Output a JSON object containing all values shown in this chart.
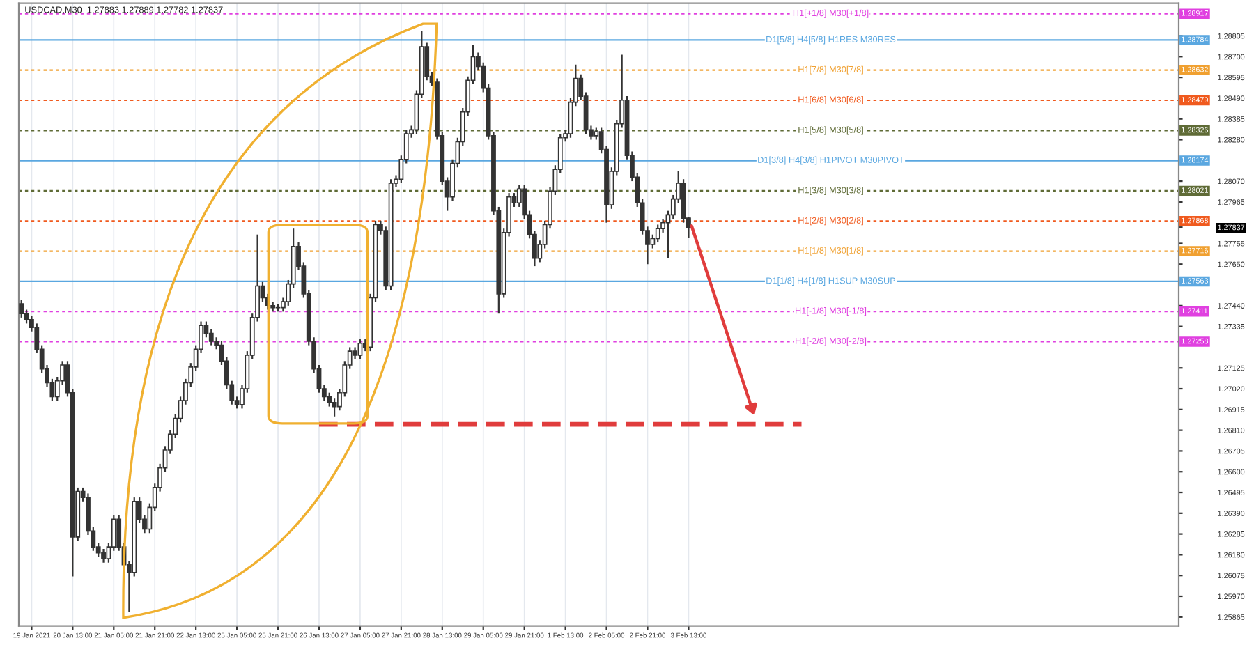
{
  "chart_data": {
    "type": "candlestick",
    "title": "USDCAD,M30  1.27883 1.27889 1.27782 1.27837",
    "color": "#333333",
    "categories": [
      null,
      null,
      "19 Jan 2021",
      null,
      null,
      null,
      null,
      null,
      null,
      null,
      "20 Jan 13:00",
      null,
      null,
      null,
      null,
      null,
      null,
      null,
      "21 Jan 05:00",
      null,
      null,
      null,
      null,
      null,
      null,
      null,
      "21 Jan 21:00",
      null,
      null,
      null,
      null,
      null,
      null,
      null,
      "22 Jan 13:00",
      null,
      null,
      null,
      null,
      null,
      null,
      null,
      "25 Jan 05:00",
      null,
      null,
      null,
      null,
      null,
      null,
      null,
      "25 Jan 21:00",
      null,
      null,
      null,
      null,
      null,
      null,
      null,
      "26 Jan 13:00",
      null,
      null,
      null,
      null,
      null,
      null,
      null,
      "27 Jan 05:00",
      null,
      null,
      null,
      null,
      null,
      null,
      null,
      "27 Jan 21:00",
      null,
      null,
      null,
      null,
      null,
      null,
      null,
      "28 Jan 13:00",
      null,
      null,
      null,
      null,
      null,
      null,
      null,
      "29 Jan 05:00",
      null,
      null,
      null,
      null,
      null,
      null,
      null,
      "29 Jan 21:00",
      null,
      null,
      null,
      null,
      null,
      null,
      null,
      "1 Feb 13:00",
      null,
      null,
      null,
      null,
      null,
      null,
      null,
      "2 Feb 05:00",
      null,
      null,
      null,
      null,
      null,
      null,
      null,
      "2 Feb 21:00",
      null,
      null,
      null,
      null,
      null,
      null,
      null,
      "3 Feb 13:00",
      null,
      null,
      null,
      null,
      null,
      null,
      null,
      null,
      null,
      null,
      null,
      null,
      null,
      null,
      null,
      null,
      null,
      null,
      null,
      null,
      null,
      null,
      null,
      null,
      null,
      null,
      null,
      null,
      null,
      null,
      null,
      null,
      null,
      null,
      null,
      null,
      null,
      null,
      null,
      null,
      null,
      null,
      null,
      null,
      null,
      null,
      null,
      null,
      null,
      null,
      null,
      null,
      null,
      null,
      null,
      null,
      null,
      null,
      null,
      null,
      null,
      null,
      null,
      null,
      null,
      null,
      null,
      null,
      null,
      null,
      null,
      null,
      null,
      null,
      null,
      null,
      null,
      null,
      null,
      null,
      null,
      null,
      null,
      null,
      null,
      null,
      null,
      null,
      null,
      null,
      null,
      null,
      null,
      null,
      null
    ],
    "ohlc": [
      [
        1.2745,
        1.2747,
        1.2738,
        1.274
      ],
      [
        1.274,
        1.2742,
        1.2735,
        1.2737
      ],
      [
        1.2737,
        1.2739,
        1.2731,
        1.2733
      ],
      [
        1.2733,
        1.2735,
        1.272,
        1.2722
      ],
      [
        1.2722,
        1.2724,
        1.271,
        1.2712
      ],
      [
        1.2712,
        1.2714,
        1.2703,
        1.2705
      ],
      [
        1.2705,
        1.2707,
        1.2696,
        1.2698
      ],
      [
        1.2698,
        1.2708,
        1.2696,
        1.2706
      ],
      [
        1.2706,
        1.2716,
        1.2704,
        1.2714
      ],
      [
        1.2714,
        1.2716,
        1.2698,
        1.27
      ],
      [
        1.27,
        1.2702,
        1.2607,
        1.2627
      ],
      [
        1.2627,
        1.2652,
        1.2625,
        1.265
      ],
      [
        1.265,
        1.2652,
        1.2645,
        1.2647
      ],
      [
        1.2647,
        1.2649,
        1.2628,
        1.263
      ],
      [
        1.263,
        1.2632,
        1.262,
        1.2622
      ],
      [
        1.2622,
        1.2624,
        1.2617,
        1.2619
      ],
      [
        1.2619,
        1.2621,
        1.2614,
        1.2616
      ],
      [
        1.2616,
        1.2624,
        1.2614,
        1.2622
      ],
      [
        1.2622,
        1.2638,
        1.262,
        1.2636
      ],
      [
        1.2636,
        1.2638,
        1.262,
        1.2622
      ],
      [
        1.2622,
        1.2624,
        1.2611,
        1.2613
      ],
      [
        1.2613,
        1.2615,
        1.2589,
        1.2609
      ],
      [
        1.2609,
        1.2647,
        1.2607,
        1.2645
      ],
      [
        1.2645,
        1.2647,
        1.2634,
        1.2636
      ],
      [
        1.2636,
        1.2638,
        1.2629,
        1.2631
      ],
      [
        1.2631,
        1.2644,
        1.2629,
        1.2642
      ],
      [
        1.2642,
        1.2654,
        1.264,
        1.2652
      ],
      [
        1.2652,
        1.2664,
        1.265,
        1.2662
      ],
      [
        1.2662,
        1.2673,
        1.266,
        1.2671
      ],
      [
        1.2671,
        1.2681,
        1.2669,
        1.2679
      ],
      [
        1.2679,
        1.2689,
        1.2677,
        1.2687
      ],
      [
        1.2687,
        1.2698,
        1.2685,
        1.2696
      ],
      [
        1.2696,
        1.2707,
        1.2694,
        1.2705
      ],
      [
        1.2705,
        1.2715,
        1.2703,
        1.2713
      ],
      [
        1.2713,
        1.2724,
        1.2711,
        1.2722
      ],
      [
        1.2722,
        1.2736,
        1.272,
        1.2734
      ],
      [
        1.2734,
        1.2736,
        1.2728,
        1.273
      ],
      [
        1.273,
        1.2732,
        1.2724,
        1.2726
      ],
      [
        1.2726,
        1.2728,
        1.2722,
        1.2724
      ],
      [
        1.2724,
        1.2726,
        1.2714,
        1.2716
      ],
      [
        1.2716,
        1.2718,
        1.2702,
        1.2704
      ],
      [
        1.2704,
        1.2706,
        1.2694,
        1.2696
      ],
      [
        1.2696,
        1.2698,
        1.2692,
        1.2694
      ],
      [
        1.2694,
        1.2704,
        1.2692,
        1.2702
      ],
      [
        1.2702,
        1.2721,
        1.27,
        1.2719
      ],
      [
        1.2719,
        1.274,
        1.2717,
        1.2738
      ],
      [
        1.2738,
        1.278,
        1.2736,
        1.2754
      ],
      [
        1.2754,
        1.2756,
        1.2746,
        1.2748
      ],
      [
        1.2748,
        1.275,
        1.2742,
        1.2744
      ],
      [
        1.2744,
        1.2746,
        1.2741,
        1.2743
      ],
      [
        1.2743,
        1.2745,
        1.2741,
        1.2743
      ],
      [
        1.2743,
        1.2748,
        1.2741,
        1.2746
      ],
      [
        1.2746,
        1.2757,
        1.2744,
        1.2755
      ],
      [
        1.2755,
        1.2783,
        1.2753,
        1.2774
      ],
      [
        1.2774,
        1.2776,
        1.2762,
        1.2764
      ],
      [
        1.2764,
        1.2766,
        1.2748,
        1.275
      ],
      [
        1.275,
        1.2752,
        1.2724,
        1.2726
      ],
      [
        1.2726,
        1.2728,
        1.271,
        1.2712
      ],
      [
        1.2712,
        1.2714,
        1.27,
        1.2702
      ],
      [
        1.2702,
        1.2704,
        1.2696,
        1.2698
      ],
      [
        1.2698,
        1.27,
        1.2693,
        1.2695
      ],
      [
        1.2695,
        1.2697,
        1.2688,
        1.2693
      ],
      [
        1.2693,
        1.2702,
        1.2691,
        1.27
      ],
      [
        1.27,
        1.2716,
        1.2698,
        1.2714
      ],
      [
        1.2714,
        1.2723,
        1.2712,
        1.2721
      ],
      [
        1.2721,
        1.2723,
        1.2717,
        1.2719
      ],
      [
        1.2719,
        1.2727,
        1.2717,
        1.2725
      ],
      [
        1.2725,
        1.2727,
        1.2721,
        1.2723
      ],
      [
        1.2723,
        1.275,
        1.2721,
        1.2748
      ],
      [
        1.2748,
        1.2787,
        1.2746,
        1.2785
      ],
      [
        1.2785,
        1.2787,
        1.278,
        1.2782
      ],
      [
        1.2782,
        1.2784,
        1.2752,
        1.2754
      ],
      [
        1.2754,
        1.2808,
        1.2752,
        1.2806
      ],
      [
        1.2806,
        1.281,
        1.2804,
        1.2808
      ],
      [
        1.2808,
        1.282,
        1.2806,
        1.2818
      ],
      [
        1.2818,
        1.2833,
        1.2816,
        1.2831
      ],
      [
        1.2831,
        1.2835,
        1.2829,
        1.2833
      ],
      [
        1.2833,
        1.2853,
        1.2831,
        1.2851
      ],
      [
        1.2851,
        1.2883,
        1.2849,
        1.2875
      ],
      [
        1.2875,
        1.2877,
        1.2858,
        1.286
      ],
      [
        1.286,
        1.2862,
        1.2855,
        1.2857
      ],
      [
        1.2857,
        1.2859,
        1.2828,
        1.283
      ],
      [
        1.283,
        1.2832,
        1.2805,
        1.2807
      ],
      [
        1.2807,
        1.2809,
        1.2792,
        1.2799
      ],
      [
        1.2799,
        1.2818,
        1.2797,
        1.2816
      ],
      [
        1.2816,
        1.2829,
        1.2814,
        1.2827
      ],
      [
        1.2827,
        1.2844,
        1.2825,
        1.2842
      ],
      [
        1.2842,
        1.286,
        1.284,
        1.2858
      ],
      [
        1.2858,
        1.2876,
        1.2856,
        1.287
      ],
      [
        1.287,
        1.2872,
        1.2863,
        1.2865
      ],
      [
        1.2865,
        1.2867,
        1.2852,
        1.2854
      ],
      [
        1.2854,
        1.2856,
        1.2828,
        1.283
      ],
      [
        1.283,
        1.2832,
        1.279,
        1.2792
      ],
      [
        1.2792,
        1.2794,
        1.274,
        1.275
      ],
      [
        1.275,
        1.2783,
        1.2748,
        1.2781
      ],
      [
        1.2781,
        1.2801,
        1.2779,
        1.2799
      ],
      [
        1.2799,
        1.2801,
        1.2794,
        1.2796
      ],
      [
        1.2796,
        1.2805,
        1.2794,
        1.2803
      ],
      [
        1.2803,
        1.2805,
        1.2788,
        1.279
      ],
      [
        1.279,
        1.2792,
        1.2778,
        1.278
      ],
      [
        1.278,
        1.2782,
        1.2764,
        1.2768
      ],
      [
        1.2768,
        1.2777,
        1.2766,
        1.2775
      ],
      [
        1.2775,
        1.2787,
        1.2773,
        1.2785
      ],
      [
        1.2785,
        1.2804,
        1.2783,
        1.2802
      ],
      [
        1.2802,
        1.2815,
        1.28,
        1.2813
      ],
      [
        1.2813,
        1.2831,
        1.2811,
        1.2829
      ],
      [
        1.2829,
        1.2833,
        1.2827,
        1.2831
      ],
      [
        1.2831,
        1.2849,
        1.2829,
        1.2847
      ],
      [
        1.2847,
        1.2866,
        1.2845,
        1.2859
      ],
      [
        1.2859,
        1.2861,
        1.2848,
        1.285
      ],
      [
        1.285,
        1.2852,
        1.2831,
        1.2833
      ],
      [
        1.2833,
        1.2835,
        1.2828,
        1.283
      ],
      [
        1.283,
        1.2834,
        1.2828,
        1.2832
      ],
      [
        1.2832,
        1.2834,
        1.2821,
        1.2823
      ],
      [
        1.2823,
        1.2825,
        1.2786,
        1.2795
      ],
      [
        1.2795,
        1.2814,
        1.2793,
        1.2812
      ],
      [
        1.2812,
        1.2838,
        1.281,
        1.2836
      ],
      [
        1.2836,
        1.2871,
        1.2834,
        1.2848
      ],
      [
        1.2848,
        1.285,
        1.2818,
        1.282
      ],
      [
        1.282,
        1.2822,
        1.2807,
        1.2809
      ],
      [
        1.2809,
        1.2811,
        1.2794,
        1.2796
      ],
      [
        1.2796,
        1.2798,
        1.278,
        1.2782
      ],
      [
        1.2782,
        1.2784,
        1.2765,
        1.2775
      ],
      [
        1.2775,
        1.278,
        1.2773,
        1.2778
      ],
      [
        1.2778,
        1.2785,
        1.2776,
        1.2783
      ],
      [
        1.2783,
        1.2788,
        1.2781,
        1.2786
      ],
      [
        1.2786,
        1.2792,
        1.2768,
        1.279
      ],
      [
        1.279,
        1.28,
        1.2788,
        1.2798
      ],
      [
        1.2798,
        1.2812,
        1.2796,
        1.2806
      ],
      [
        1.2806,
        1.2808,
        1.2786,
        1.2788
      ],
      [
        1.27883,
        1.27889,
        1.27782,
        1.27837
      ],
      null,
      null,
      null,
      null,
      null,
      null,
      null,
      null,
      null,
      null,
      null,
      null,
      null,
      null,
      null,
      null,
      null,
      null,
      null,
      null,
      null,
      null,
      null,
      null,
      null,
      null,
      null,
      null,
      null,
      null,
      null,
      null,
      null,
      null,
      null,
      null,
      null,
      null,
      null,
      null,
      null,
      null,
      null,
      null,
      null,
      null,
      null,
      null,
      null,
      null,
      null,
      null,
      null,
      null,
      null,
      null,
      null,
      null,
      null,
      null,
      null,
      null,
      null,
      null,
      null,
      null,
      null,
      null,
      null,
      null,
      null,
      null,
      null,
      null,
      null,
      null,
      null,
      null,
      null,
      null,
      null,
      null,
      null,
      null,
      null,
      null,
      null,
      null,
      null,
      null,
      null,
      null,
      null,
      null,
      null
    ],
    "series": [
      {
        "type": "line",
        "color": "#e03c3c",
        "line_style": "dashed",
        "values": [
          null,
          null,
          null,
          null,
          null,
          null,
          null,
          null,
          null,
          null,
          null,
          null,
          null,
          null,
          null,
          null,
          null,
          null,
          null,
          null,
          null,
          null,
          null,
          null,
          null,
          null,
          null,
          null,
          null,
          null,
          null,
          null,
          null,
          null,
          null,
          null,
          null,
          null,
          null,
          null,
          null,
          null,
          null,
          null,
          null,
          null,
          null,
          null,
          null,
          null,
          null,
          null,
          null,
          null,
          null,
          null,
          null,
          null,
          1.2684,
          null,
          null,
          null,
          null,
          null,
          null,
          null,
          null,
          null,
          null,
          null,
          null,
          null,
          null,
          null,
          null,
          null,
          null,
          null,
          null,
          null,
          null,
          null,
          null,
          null,
          null,
          null,
          null,
          null,
          null,
          null,
          null,
          null,
          null,
          null,
          null,
          null,
          null,
          null,
          null,
          null,
          null,
          null,
          null,
          null,
          null,
          null,
          null,
          null,
          null,
          null,
          null,
          null,
          null,
          null,
          null,
          null,
          null,
          null,
          null,
          null,
          null,
          null,
          null,
          null,
          null,
          null,
          null,
          null,
          null,
          null,
          null,
          null,
          null,
          null,
          null,
          null,
          null,
          null,
          null,
          null,
          null,
          null,
          null,
          null,
          null,
          null,
          null,
          null,
          null,
          null,
          null,
          null,
          1.2684,
          null,
          null,
          null,
          null,
          null,
          null,
          null,
          null,
          null,
          null,
          null,
          null,
          null,
          null,
          null,
          null,
          null,
          null,
          null,
          null,
          null,
          null,
          null,
          null,
          null,
          null,
          null,
          null,
          null,
          null,
          null,
          null,
          null,
          null,
          null,
          null,
          null,
          null,
          null,
          null,
          null,
          null,
          null,
          null,
          null,
          null,
          null,
          null,
          null,
          null,
          null,
          null,
          null,
          null,
          null,
          null,
          null,
          null,
          null,
          null,
          null,
          null,
          null,
          null,
          null,
          null,
          null,
          null,
          null,
          null,
          null,
          null,
          null
        ]
      }
    ],
    "ylim": [
      1.2582,
      1.2897
    ],
    "yticks": [
      {
        "value": 1.28805,
        "label": "1.28805"
      },
      {
        "value": 1.287,
        "label": "1.28700"
      },
      {
        "value": 1.28595,
        "label": "1.28595"
      },
      {
        "value": 1.2849,
        "label": "1.28490"
      },
      {
        "value": 1.28385,
        "label": "1.28385"
      },
      {
        "value": 1.2828,
        "label": "1.28280"
      },
      {
        "value": 1.2807,
        "label": "1.28070"
      },
      {
        "value": 1.27965,
        "label": "1.27965"
      },
      {
        "value": 1.27837,
        "label": "1.27837"
      },
      {
        "value": 1.27755,
        "label": "1.27755"
      },
      {
        "value": 1.2765,
        "label": "1.27650"
      },
      {
        "value": 1.2744,
        "label": "1.27440"
      },
      {
        "value": 1.27335,
        "label": "1.27335"
      },
      {
        "value": 1.27125,
        "label": "1.27125"
      },
      {
        "value": 1.2702,
        "label": "1.27020"
      },
      {
        "value": 1.26915,
        "label": "1.26915"
      },
      {
        "value": 1.2681,
        "label": "1.26810"
      },
      {
        "value": 1.26705,
        "label": "1.26705"
      },
      {
        "value": 1.266,
        "label": "1.26600"
      },
      {
        "value": 1.26495,
        "label": "1.26495"
      },
      {
        "value": 1.2639,
        "label": "1.26390"
      },
      {
        "value": 1.26285,
        "label": "1.26285"
      },
      {
        "value": 1.2618,
        "label": "1.26180"
      },
      {
        "value": 1.26075,
        "label": "1.26075"
      },
      {
        "value": 1.2597,
        "label": "1.25970"
      },
      {
        "value": 1.25865,
        "label": "1.25865"
      }
    ],
    "grid": "x",
    "ref_lines": [
      {
        "axis": "y",
        "value": 1.28917,
        "label": "1.28917",
        "color": "#e040e0",
        "line_style": "dotted"
      },
      {
        "axis": "y",
        "value": 1.28784,
        "label": "1.28784",
        "color": "#5aa7e0",
        "line_style": "solid"
      },
      {
        "axis": "y",
        "value": 1.28632,
        "label": "1.28632",
        "color": "#f0a030",
        "line_style": "dotted"
      },
      {
        "axis": "y",
        "value": 1.28479,
        "label": "1.28479",
        "color": "#f05a1e",
        "line_style": "dotted"
      },
      {
        "axis": "y",
        "value": 1.28326,
        "label": "1.28326",
        "color": "#5f6b36",
        "line_style": "dotted"
      },
      {
        "axis": "y",
        "value": 1.28174,
        "label": "1.28174",
        "color": "#5aa7e0",
        "line_style": "solid"
      },
      {
        "axis": "y",
        "value": 1.28021,
        "label": "1.28021",
        "color": "#5f6b36",
        "line_style": "dotted"
      },
      {
        "axis": "y",
        "value": 1.27868,
        "label": "1.27868",
        "color": "#f05a1e",
        "line_style": "dotted"
      },
      {
        "axis": "y",
        "value": 1.27716,
        "label": "1.27716",
        "color": "#f0a030",
        "line_style": "dotted"
      },
      {
        "axis": "y",
        "value": 1.27563,
        "label": "1.27563",
        "color": "#5aa7e0",
        "line_style": "solid"
      },
      {
        "axis": "y",
        "value": 1.27411,
        "label": "1.27411",
        "color": "#e040e0",
        "line_style": "dotted"
      },
      {
        "axis": "y",
        "value": 1.27258,
        "label": "1.27258",
        "color": "#e040e0",
        "line_style": "dotted"
      }
    ],
    "annotations": [
      {
        "text": "H1[+1/8] M30[+1/8]",
        "y": 1.28917
      },
      {
        "text": "D1[5/8] H4[5/8] H1RES M30RES",
        "y": 1.28784
      },
      {
        "text": "H1[7/8] M30[7/8]",
        "y": 1.28632
      },
      {
        "text": "H1[6/8] M30[6/8]",
        "y": 1.28479
      },
      {
        "text": "H1[5/8] M30[5/8]",
        "y": 1.28326
      },
      {
        "text": "D1[3/8] H4[3/8] H1PIVOT M30PIVOT",
        "y": 1.28174
      },
      {
        "text": "H1[3/8] M30[3/8]",
        "y": 1.28021
      },
      {
        "text": "H1[2/8] M30[2/8]",
        "y": 1.27868
      },
      {
        "text": "H1[1/8] M30[1/8]",
        "y": 1.27716
      },
      {
        "text": "D1[1/8] H4[1/8] H1SUP M30SUP",
        "y": 1.27563
      },
      {
        "text": "H1[-1/8] M30[-1/8]",
        "y": 1.27411
      },
      {
        "text": "H1[-2/8] M30[-2/8]",
        "y": 1.27258
      }
    ]
  }
}
